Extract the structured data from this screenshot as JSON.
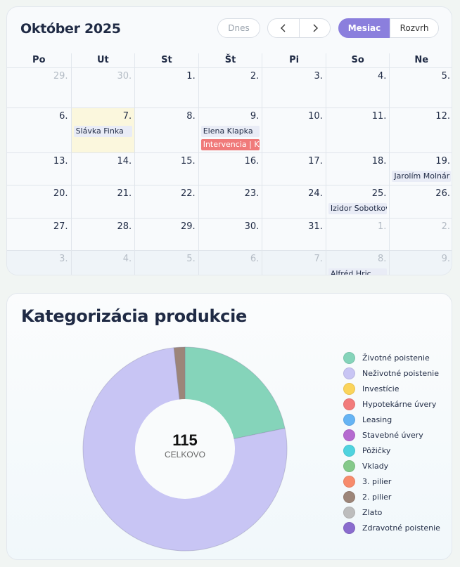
{
  "calendar": {
    "title": "Október 2025",
    "today_label": "Dnes",
    "prev_glyph": "‹",
    "next_glyph": "›",
    "month_label": "Mesiac",
    "schedule_label": "Rozvrh",
    "weekdays": [
      "Po",
      "Ut",
      "St",
      "Št",
      "Pi",
      "So",
      "Ne"
    ],
    "weeks": [
      [
        {
          "d": "29.",
          "m": true
        },
        {
          "d": "30.",
          "m": true
        },
        {
          "d": "1."
        },
        {
          "d": "2."
        },
        {
          "d": "3."
        },
        {
          "d": "4."
        },
        {
          "d": "5."
        }
      ],
      [
        {
          "d": "6."
        },
        {
          "d": "7.",
          "today": true,
          "events": [
            {
              "t": "Slávka Finka",
              "c": "lav"
            }
          ]
        },
        {
          "d": "8."
        },
        {
          "d": "9.",
          "events": [
            {
              "t": "Elena Klapka",
              "c": "lav"
            },
            {
              "t": "Intervencia | Kli",
              "c": "red"
            }
          ]
        },
        {
          "d": "10."
        },
        {
          "d": "11."
        },
        {
          "d": "12."
        }
      ],
      [
        {
          "d": "13."
        },
        {
          "d": "14."
        },
        {
          "d": "15."
        },
        {
          "d": "16."
        },
        {
          "d": "17."
        },
        {
          "d": "18."
        },
        {
          "d": "19.",
          "events": [
            {
              "t": "Jarolím Molnár",
              "c": "lav"
            }
          ]
        }
      ],
      [
        {
          "d": "20."
        },
        {
          "d": "21."
        },
        {
          "d": "22."
        },
        {
          "d": "23."
        },
        {
          "d": "24."
        },
        {
          "d": "25.",
          "events": [
            {
              "t": "Izidor Sobotkov",
              "c": "lav"
            }
          ]
        },
        {
          "d": "26."
        }
      ],
      [
        {
          "d": "27."
        },
        {
          "d": "28."
        },
        {
          "d": "29."
        },
        {
          "d": "30."
        },
        {
          "d": "31."
        },
        {
          "d": "1.",
          "m": true
        },
        {
          "d": "2.",
          "m": true
        }
      ],
      [
        {
          "d": "3.",
          "m": true
        },
        {
          "d": "4.",
          "m": true
        },
        {
          "d": "5.",
          "m": true
        },
        {
          "d": "6.",
          "m": true
        },
        {
          "d": "7.",
          "m": true
        },
        {
          "d": "8.",
          "m": true,
          "events": [
            {
              "t": "Alfréd Hric",
              "c": "lav"
            }
          ]
        },
        {
          "d": "9.",
          "m": true
        }
      ]
    ]
  },
  "production": {
    "title": "Kategorizácia produkcie",
    "total_value": "115",
    "total_label": "CELKOVO"
  },
  "chart_data": {
    "type": "pie",
    "title": "Kategorizácia produkcie",
    "legend_position": "right",
    "categories": [
      "Životné poistenie",
      "Neživotné poistenie",
      "Investície",
      "Hypotekárne úvery",
      "Leasing",
      "Stavebné úvery",
      "Pôžičky",
      "Vklady",
      "3. pilier",
      "2. pilier",
      "Zlato",
      "Zdravotné poistenie"
    ],
    "values": [
      25,
      88,
      0,
      0,
      0,
      0,
      0,
      0,
      0,
      2,
      0,
      0
    ],
    "colors": [
      "#85d4ba",
      "#c8c5f4",
      "#fbd45b",
      "#f27b7b",
      "#66b4f4",
      "#b56ad0",
      "#4fd3df",
      "#84c98a",
      "#f78b6c",
      "#9c8579",
      "#bdbdbd",
      "#8a6cce"
    ]
  }
}
